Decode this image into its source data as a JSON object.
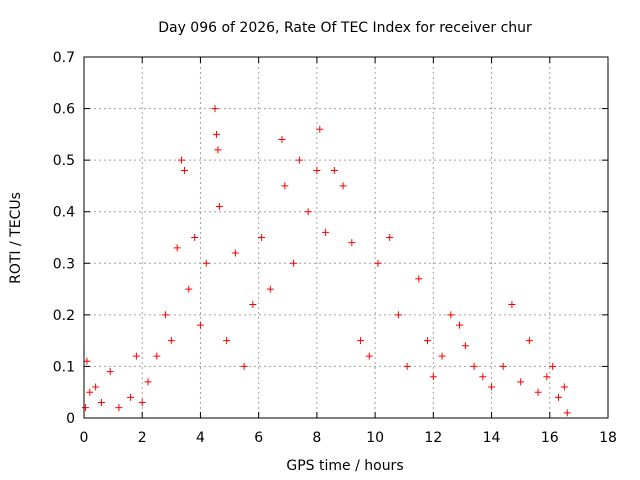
{
  "chart_data": {
    "type": "scatter",
    "title": "Day 096 of 2026, Rate Of TEC Index for receiver chur",
    "xlabel": "GPS time / hours",
    "ylabel": "ROTI / TECUs",
    "xlim": [
      0,
      18
    ],
    "ylim": [
      0,
      0.7
    ],
    "xticks": [
      0,
      2,
      4,
      6,
      8,
      10,
      12,
      14,
      16,
      18
    ],
    "xtick_labels": [
      "0",
      "2",
      "4",
      "6",
      "8",
      "10",
      "12",
      "14",
      "16",
      "18"
    ],
    "yticks": [
      0,
      0.1,
      0.2,
      0.3,
      0.4,
      0.5,
      0.6,
      0.7
    ],
    "ytick_labels": [
      "0",
      "0.1",
      "0.2",
      "0.3",
      "0.4",
      "0.5",
      "0.6",
      "0.7"
    ],
    "grid": true,
    "marker": "plus",
    "color": "#ff0000",
    "points": [
      [
        0.05,
        0.02
      ],
      [
        0.1,
        0.11
      ],
      [
        0.2,
        0.05
      ],
      [
        0.4,
        0.06
      ],
      [
        0.6,
        0.03
      ],
      [
        0.9,
        0.09
      ],
      [
        1.2,
        0.02
      ],
      [
        1.6,
        0.04
      ],
      [
        1.8,
        0.12
      ],
      [
        2.0,
        0.03
      ],
      [
        2.2,
        0.07
      ],
      [
        2.5,
        0.12
      ],
      [
        2.8,
        0.2
      ],
      [
        3.0,
        0.15
      ],
      [
        3.2,
        0.33
      ],
      [
        3.35,
        0.5
      ],
      [
        3.45,
        0.48
      ],
      [
        3.6,
        0.25
      ],
      [
        3.8,
        0.35
      ],
      [
        4.0,
        0.18
      ],
      [
        4.2,
        0.3
      ],
      [
        4.5,
        0.6
      ],
      [
        4.55,
        0.55
      ],
      [
        4.6,
        0.52
      ],
      [
        4.65,
        0.41
      ],
      [
        4.9,
        0.15
      ],
      [
        5.2,
        0.32
      ],
      [
        5.5,
        0.1
      ],
      [
        5.8,
        0.22
      ],
      [
        6.1,
        0.35
      ],
      [
        6.4,
        0.25
      ],
      [
        6.8,
        0.54
      ],
      [
        6.9,
        0.45
      ],
      [
        7.2,
        0.3
      ],
      [
        7.4,
        0.5
      ],
      [
        7.7,
        0.4
      ],
      [
        8.0,
        0.48
      ],
      [
        8.1,
        0.56
      ],
      [
        8.3,
        0.36
      ],
      [
        8.6,
        0.48
      ],
      [
        8.9,
        0.45
      ],
      [
        9.2,
        0.34
      ],
      [
        9.5,
        0.15
      ],
      [
        9.8,
        0.12
      ],
      [
        10.1,
        0.3
      ],
      [
        10.5,
        0.35
      ],
      [
        10.8,
        0.2
      ],
      [
        11.1,
        0.1
      ],
      [
        11.5,
        0.27
      ],
      [
        11.8,
        0.15
      ],
      [
        12.0,
        0.08
      ],
      [
        12.3,
        0.12
      ],
      [
        12.6,
        0.2
      ],
      [
        12.9,
        0.18
      ],
      [
        13.1,
        0.14
      ],
      [
        13.4,
        0.1
      ],
      [
        13.7,
        0.08
      ],
      [
        14.0,
        0.06
      ],
      [
        14.4,
        0.1
      ],
      [
        14.7,
        0.22
      ],
      [
        15.0,
        0.07
      ],
      [
        15.3,
        0.15
      ],
      [
        15.6,
        0.05
      ],
      [
        15.9,
        0.08
      ],
      [
        16.1,
        0.1
      ],
      [
        16.3,
        0.04
      ],
      [
        16.5,
        0.06
      ],
      [
        16.6,
        0.01
      ]
    ]
  }
}
